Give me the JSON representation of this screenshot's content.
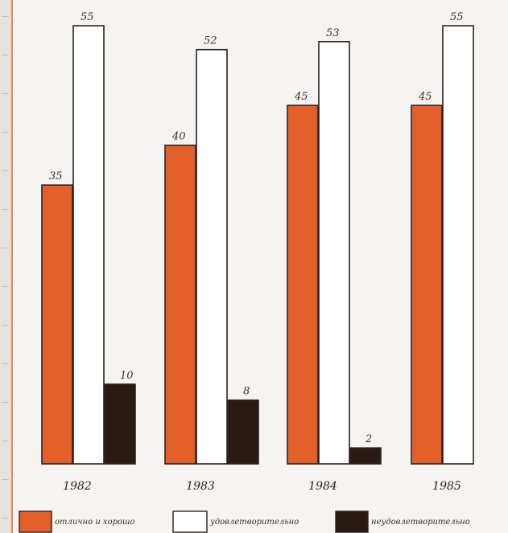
{
  "chart_data": {
    "type": "bar",
    "title": "",
    "xlabel": "",
    "ylabel": "",
    "categories": [
      "1982",
      "1983",
      "1984",
      "1985"
    ],
    "series": [
      {
        "name": "отлично и хорошо",
        "values": [
          35,
          40,
          45,
          45
        ],
        "color": "#e4602b"
      },
      {
        "name": "удовлетворительно",
        "values": [
          55,
          52,
          53,
          55
        ],
        "color": "#ffffff"
      },
      {
        "name": "неудовлетворительно",
        "values": [
          10,
          8,
          2,
          null
        ],
        "color": "#2a1a14"
      }
    ],
    "ylim": [
      0,
      55
    ],
    "grid": false,
    "legend": "bottom"
  },
  "colors": {
    "orange": "#e4602b",
    "white": "#ffffff",
    "black": "#2a1a14",
    "outline": "#2b2320"
  }
}
